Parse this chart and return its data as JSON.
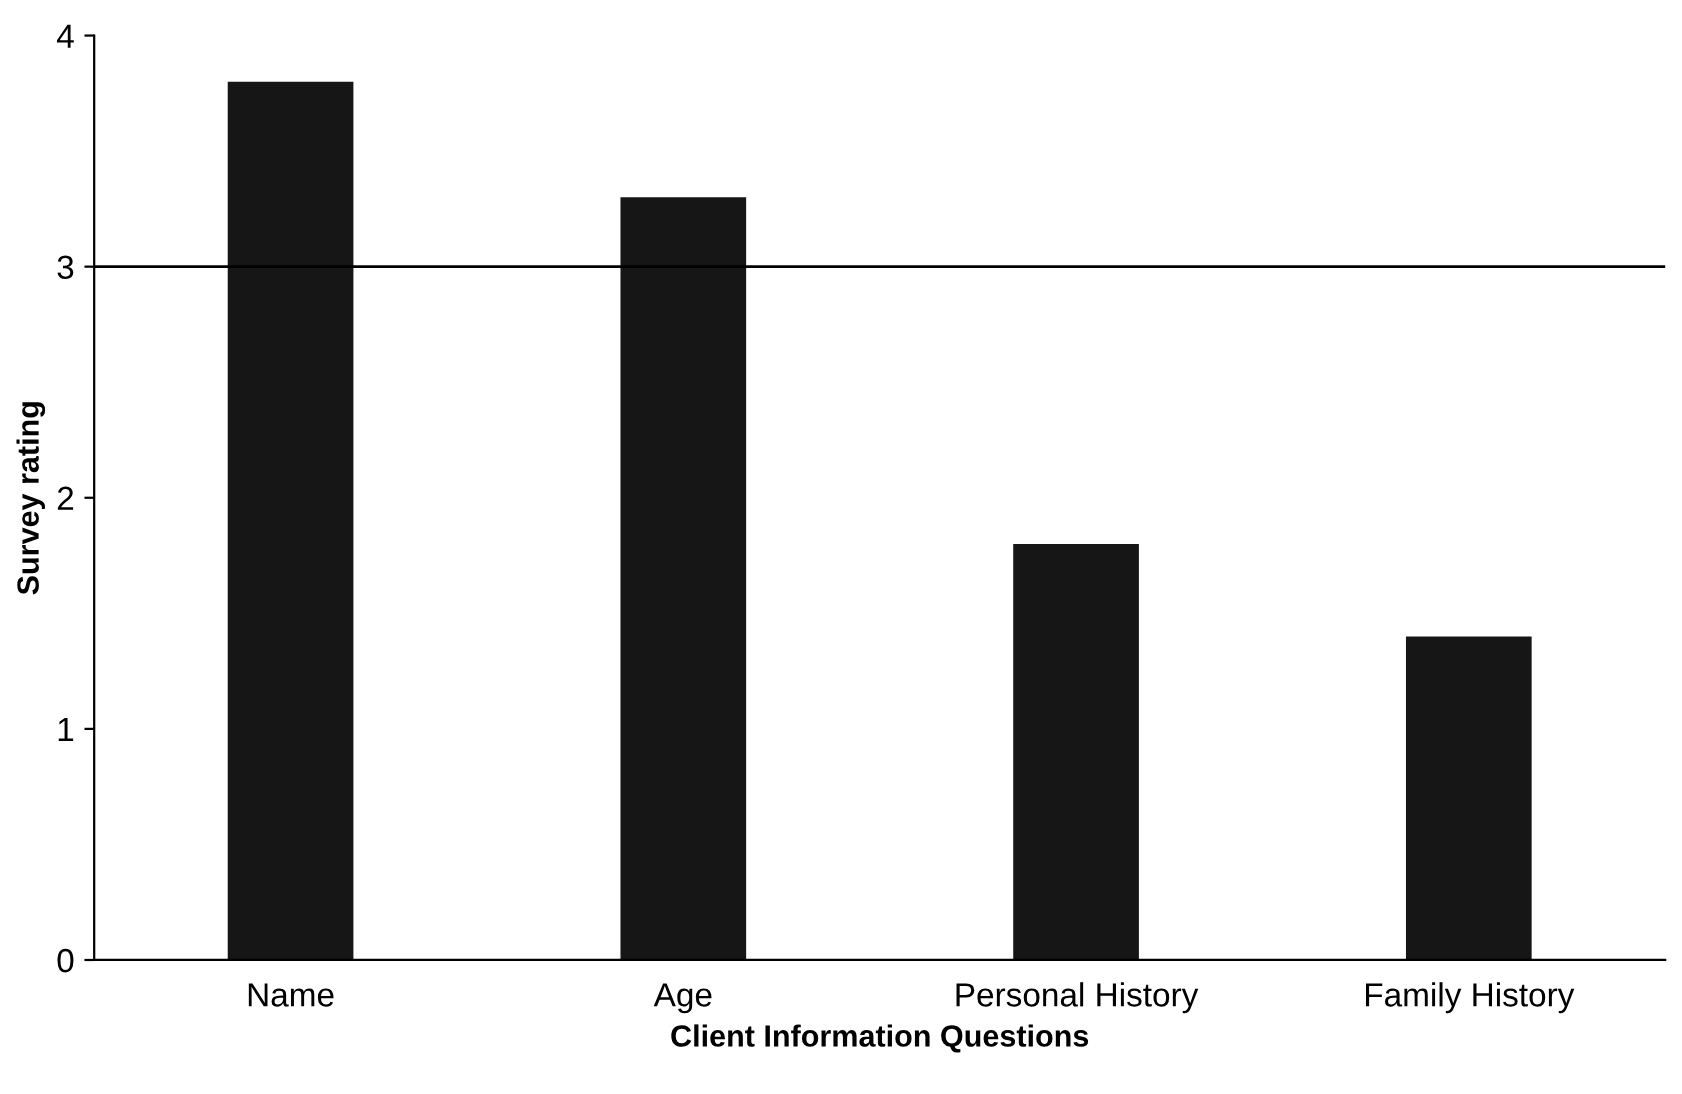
{
  "chart_data": {
    "type": "bar",
    "xlabel": "Client Information Questions",
    "ylabel": "Survey rating",
    "categories": [
      "Name",
      "Age",
      "Personal History",
      "Family History"
    ],
    "values": [
      3.8,
      3.3,
      1.8,
      1.4
    ],
    "color": "#161616",
    "ylim": [
      0,
      4
    ],
    "yticks": [
      0,
      1,
      2,
      3,
      4
    ],
    "grid": false,
    "legend": false,
    "ref_lines": [
      {
        "axis": "y",
        "value": 3,
        "color": "#000000"
      }
    ]
  }
}
